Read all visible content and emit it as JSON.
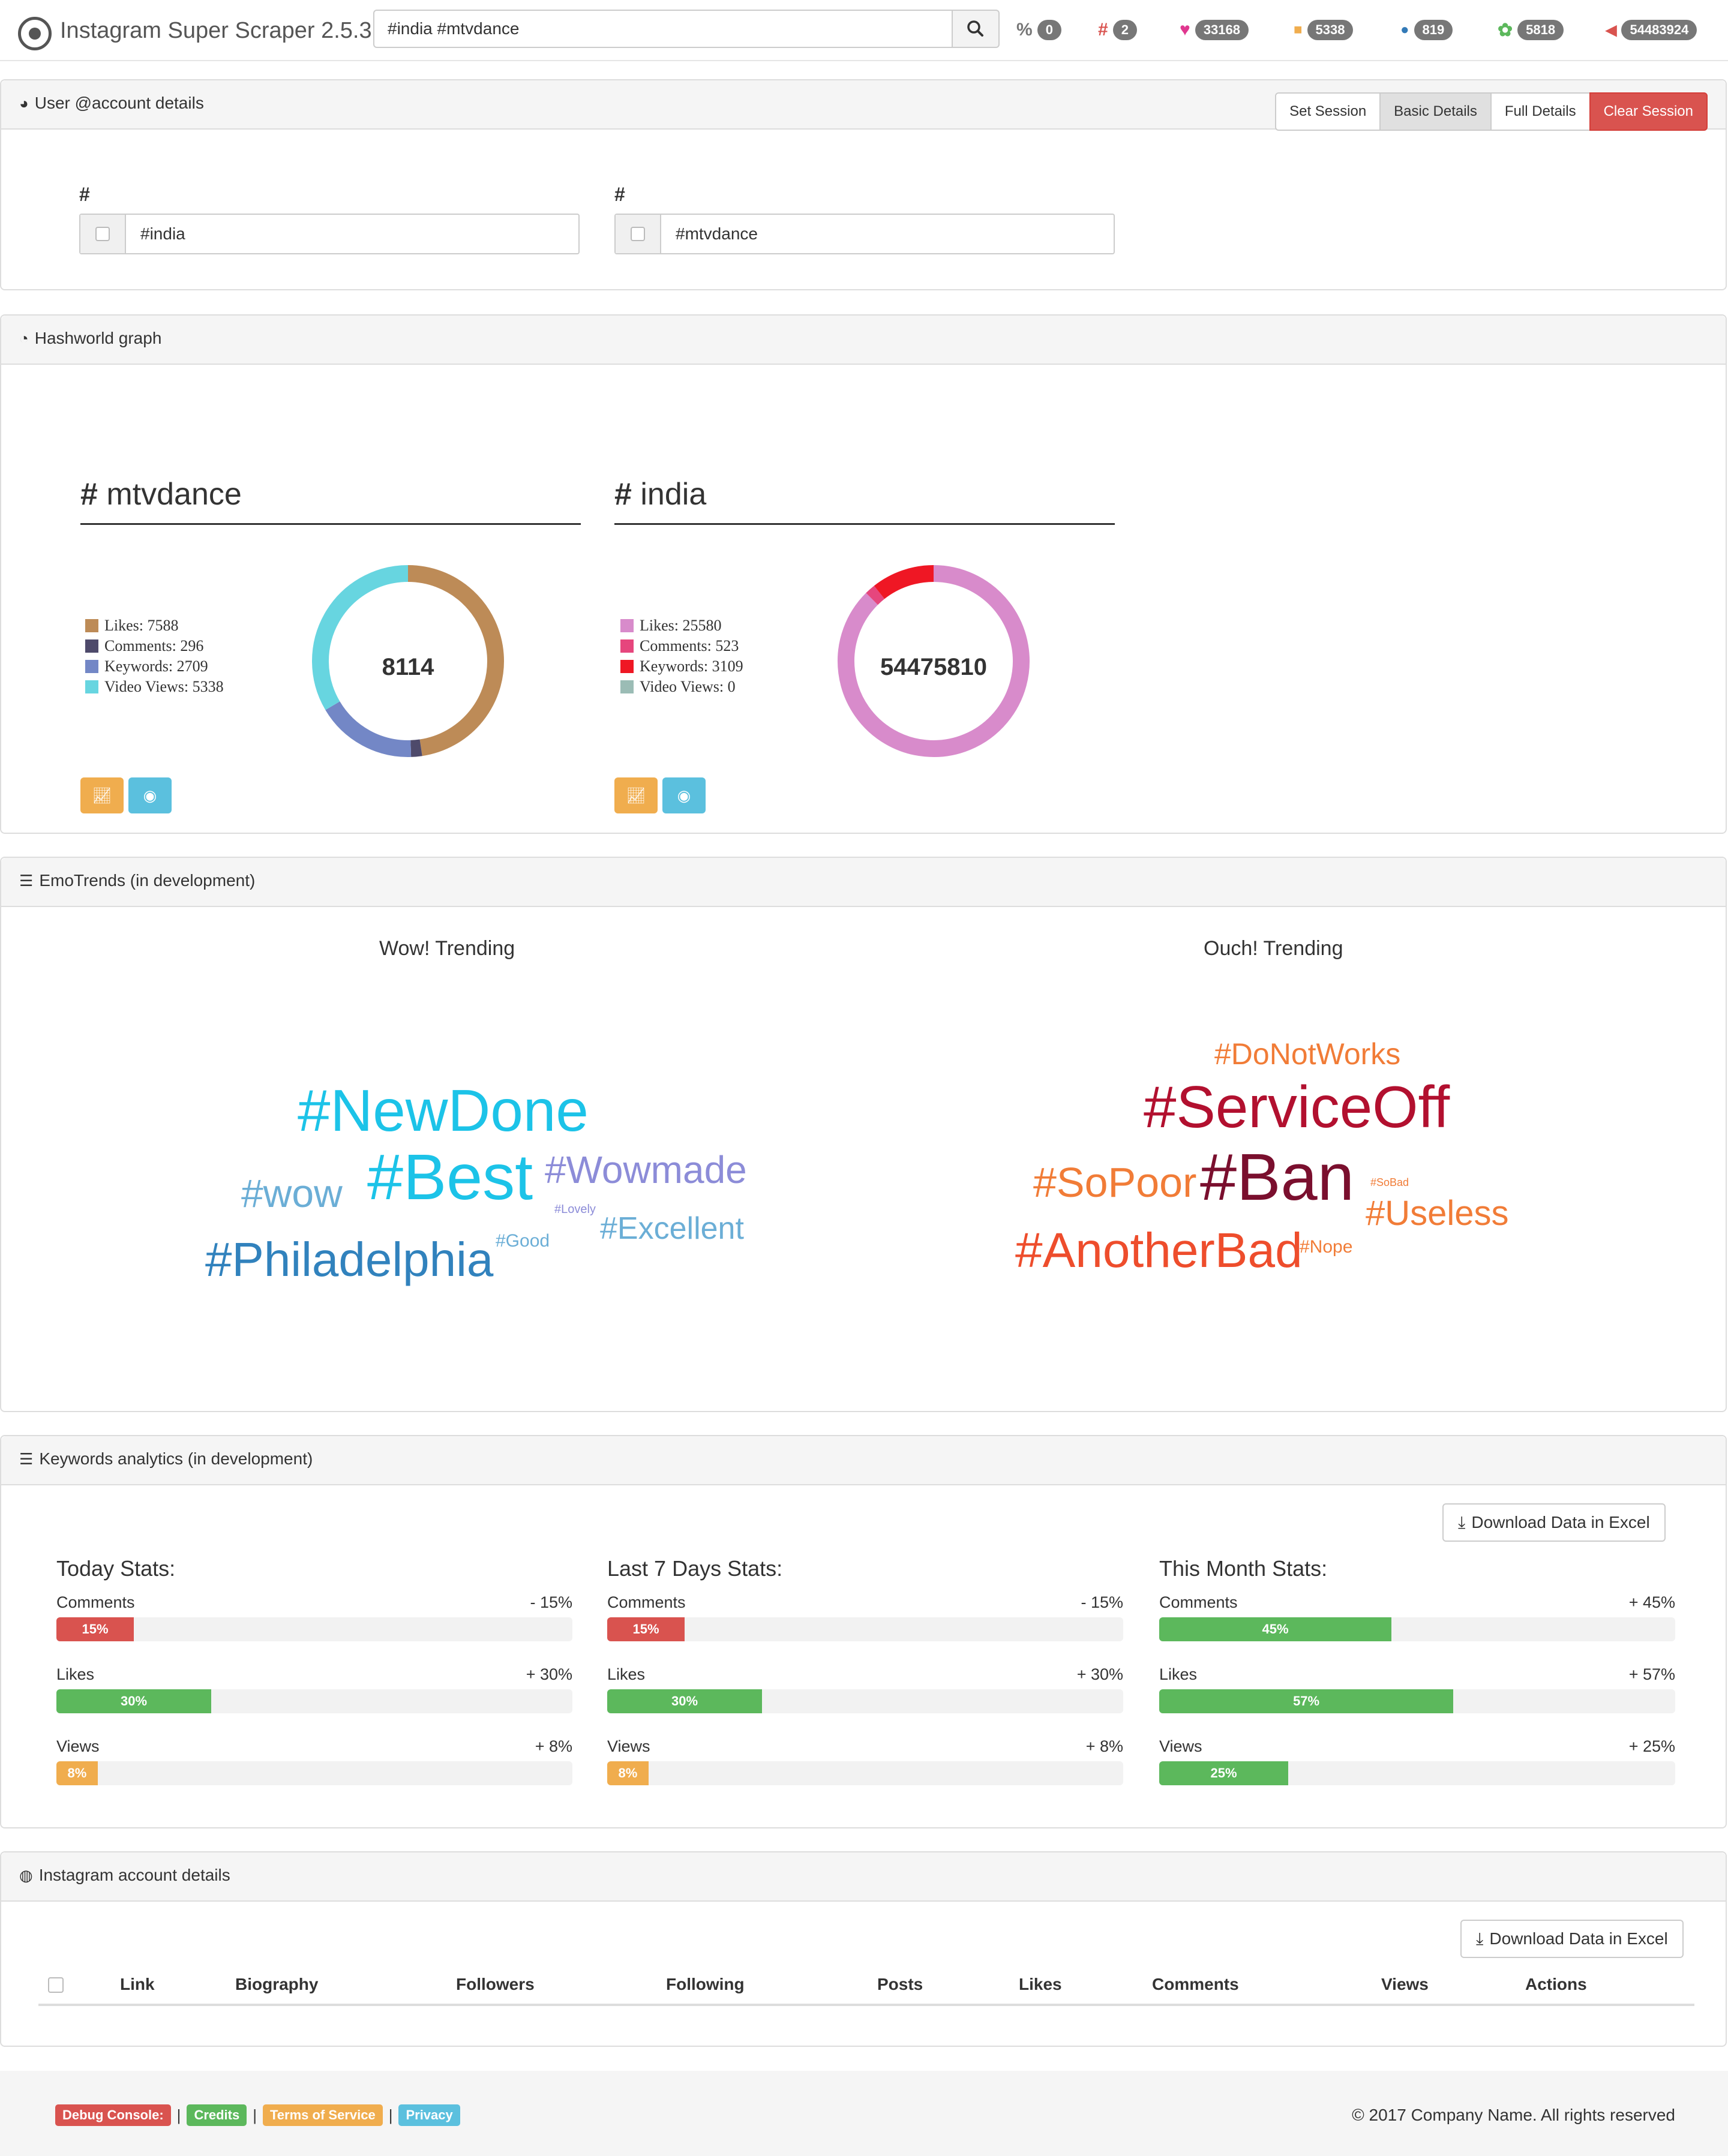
{
  "app": {
    "title": "Instagram Super Scraper 2.5.3",
    "search_value": "#india #mtvdance"
  },
  "stats": [
    {
      "icon": "link-icon",
      "glyph": "%",
      "value": "0",
      "color": "#777"
    },
    {
      "icon": "hashtag-icon",
      "glyph": "#",
      "value": "2",
      "color": "#d9534f"
    },
    {
      "icon": "heart-icon",
      "glyph": "♥",
      "value": "33168",
      "color": "#e0378f"
    },
    {
      "icon": "video-camera-icon",
      "glyph": "■",
      "value": "5338",
      "color": "#f0ad4e"
    },
    {
      "icon": "comments-icon",
      "glyph": "●",
      "value": "819",
      "color": "#337ab7"
    },
    {
      "icon": "users-icon",
      "glyph": "✿",
      "value": "5818",
      "color": "#5cb85c"
    },
    {
      "icon": "bullhorn-icon",
      "glyph": "◀",
      "value": "54483924",
      "color": "#d9534f"
    }
  ],
  "user_panel": {
    "title": "User @account details",
    "buttons": {
      "set_session": "Set Session",
      "basic_details": "Basic Details",
      "full_details": "Full Details",
      "clear_session": "Clear Session"
    },
    "fields": [
      {
        "label": "#",
        "value": "#india"
      },
      {
        "label": "#",
        "value": "#mtvdance"
      }
    ]
  },
  "graph_panel": {
    "title": "Hashworld graph",
    "charts": [
      {
        "hashtag": "mtvdance",
        "total": "8114",
        "legend": [
          "Likes: 7588",
          "Comments: 296",
          "Keywords: 2709",
          "Video Views: 5338"
        ],
        "colors": [
          "#bd8b57",
          "#4e4a6b",
          "#7387c6",
          "#67d5e0"
        ]
      },
      {
        "hashtag": "india",
        "total": "54475810",
        "legend": [
          "Likes: 25580",
          "Comments: 523",
          "Keywords: 3109",
          "Video Views: 0"
        ],
        "colors": [
          "#d88bcb",
          "#e6467d",
          "#ef1724",
          "#9bbcb5"
        ]
      }
    ]
  },
  "chart_data": [
    {
      "type": "pie",
      "title": "mtvdance",
      "categories": [
        "Likes",
        "Comments",
        "Keywords",
        "Video Views"
      ],
      "values": [
        7588,
        296,
        2709,
        5338
      ],
      "total_label": "8114"
    },
    {
      "type": "pie",
      "title": "india",
      "categories": [
        "Likes",
        "Comments",
        "Keywords",
        "Video Views"
      ],
      "values": [
        25580,
        523,
        3109,
        0
      ],
      "total_label": "54475810"
    }
  ],
  "emo_panel": {
    "title": "EmoTrends (in development)",
    "wow_title": "Wow! Trending",
    "ouch_title": "Ouch! Trending",
    "wow_words": [
      "#NewDone",
      "#Best",
      "#wow",
      "#Wowmade",
      "#Lovely",
      "#Excellent",
      "#Philadelphia",
      "#Good"
    ],
    "ouch_words": [
      "#DoNotWorks",
      "#ServiceOff",
      "#SoPoor",
      "#Ban",
      "#SoBad",
      "#Useless",
      "#AnotherBad",
      "#Nope"
    ]
  },
  "keywords_panel": {
    "title": "Keywords analytics (in development)",
    "download_label": "Download Data in Excel",
    "groups": [
      {
        "title": "Today Stats:",
        "rows": [
          {
            "label": "Comments",
            "change": "- 15%",
            "percent": 15,
            "text": "15%",
            "color": "#d9534f"
          },
          {
            "label": "Likes",
            "change": "+ 30%",
            "percent": 30,
            "text": "30%",
            "color": "#5cb85c"
          },
          {
            "label": "Views",
            "change": "+ 8%",
            "percent": 8,
            "text": "8%",
            "color": "#f0ad4e"
          }
        ]
      },
      {
        "title": "Last 7 Days Stats:",
        "rows": [
          {
            "label": "Comments",
            "change": "- 15%",
            "percent": 15,
            "text": "15%",
            "color": "#d9534f"
          },
          {
            "label": "Likes",
            "change": "+ 30%",
            "percent": 30,
            "text": "30%",
            "color": "#5cb85c"
          },
          {
            "label": "Views",
            "change": "+ 8%",
            "percent": 8,
            "text": "8%",
            "color": "#f0ad4e"
          }
        ]
      },
      {
        "title": "This Month Stats:",
        "rows": [
          {
            "label": "Comments",
            "change": "+ 45%",
            "percent": 45,
            "text": "45%",
            "color": "#5cb85c"
          },
          {
            "label": "Likes",
            "change": "+ 57%",
            "percent": 57,
            "text": "57%",
            "color": "#5cb85c"
          },
          {
            "label": "Views",
            "change": "+ 25%",
            "percent": 25,
            "text": "25%",
            "color": "#5cb85c"
          }
        ]
      }
    ]
  },
  "account_panel": {
    "title": "Instagram account details",
    "download_label": "Download Data in Excel",
    "columns": [
      "Link",
      "Biography",
      "Followers",
      "Following",
      "Posts",
      "Likes",
      "Comments",
      "Views",
      "Actions"
    ]
  },
  "footer": {
    "debug": "Debug Console:",
    "credits": "Credits",
    "terms": "Terms of Service",
    "privacy": "Privacy",
    "sep": "|",
    "copyright": "© 2017 Company Name. All rights reserved"
  }
}
